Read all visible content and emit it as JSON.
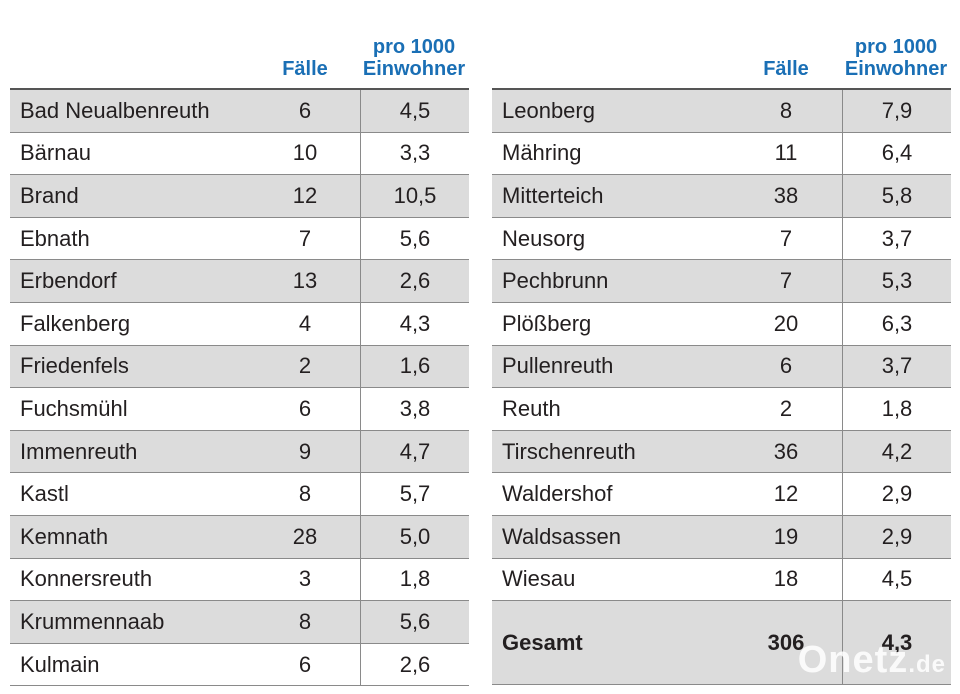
{
  "header": {
    "col_cases": "Fälle",
    "col_rate_line1": "pro 1000",
    "col_rate_line2": "Einwohner"
  },
  "left_rows": [
    {
      "name": "Bad Neualbenreuth",
      "cases": "6",
      "rate": "4,5"
    },
    {
      "name": "Bärnau",
      "cases": "10",
      "rate": "3,3"
    },
    {
      "name": "Brand",
      "cases": "12",
      "rate": "10,5"
    },
    {
      "name": "Ebnath",
      "cases": "7",
      "rate": "5,6"
    },
    {
      "name": "Erbendorf",
      "cases": "13",
      "rate": "2,6"
    },
    {
      "name": "Falkenberg",
      "cases": "4",
      "rate": "4,3"
    },
    {
      "name": "Friedenfels",
      "cases": "2",
      "rate": "1,6"
    },
    {
      "name": "Fuchsmühl",
      "cases": "6",
      "rate": "3,8"
    },
    {
      "name": "Immenreuth",
      "cases": "9",
      "rate": "4,7"
    },
    {
      "name": "Kastl",
      "cases": "8",
      "rate": "5,7"
    },
    {
      "name": "Kemnath",
      "cases": "28",
      "rate": "5,0"
    },
    {
      "name": "Konnersreuth",
      "cases": "3",
      "rate": "1,8"
    },
    {
      "name": "Krummennaab",
      "cases": "8",
      "rate": "5,6"
    },
    {
      "name": "Kulmain",
      "cases": "6",
      "rate": "2,6"
    }
  ],
  "right_rows": [
    {
      "name": "Leonberg",
      "cases": "8",
      "rate": "7,9"
    },
    {
      "name": "Mähring",
      "cases": "11",
      "rate": "6,4"
    },
    {
      "name": "Mitterteich",
      "cases": "38",
      "rate": "5,8"
    },
    {
      "name": "Neusorg",
      "cases": "7",
      "rate": "3,7"
    },
    {
      "name": "Pechbrunn",
      "cases": "7",
      "rate": "5,3"
    },
    {
      "name": "Plößberg",
      "cases": "20",
      "rate": "6,3"
    },
    {
      "name": "Pullenreuth",
      "cases": "6",
      "rate": "3,7"
    },
    {
      "name": "Reuth",
      "cases": "2",
      "rate": "1,8"
    },
    {
      "name": "Tirschenreuth",
      "cases": "36",
      "rate": "4,2"
    },
    {
      "name": "Waldershof",
      "cases": "12",
      "rate": "2,9"
    },
    {
      "name": "Waldsassen",
      "cases": "19",
      "rate": "2,9"
    },
    {
      "name": "Wiesau",
      "cases": "18",
      "rate": "4,5"
    }
  ],
  "total": {
    "name": "Gesamt",
    "cases": "306",
    "rate": "4,3"
  },
  "watermark": {
    "brand": "Onetz",
    "tld": ".de"
  }
}
